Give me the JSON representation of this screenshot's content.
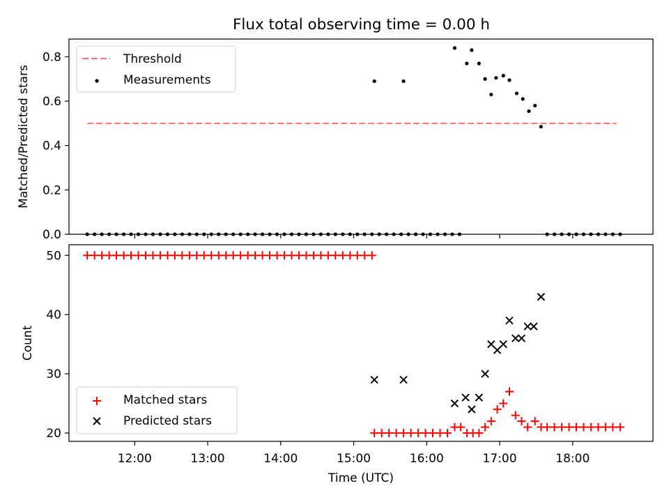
{
  "chart_data": [
    {
      "type": "scatter",
      "title": "Flux total observing time = 0.00 h",
      "ylabel": "Matched/Predicted stars",
      "xlabel": "",
      "xlim": [
        "11:06",
        "19:06"
      ],
      "ylim": [
        0,
        0.88
      ],
      "yticks": [
        "0.0",
        "0.2",
        "0.4",
        "0.6",
        "0.8"
      ],
      "legend_position": "upper left",
      "legend": [
        "Threshold",
        "Measurements"
      ],
      "threshold": {
        "name": "Threshold",
        "value": 0.5,
        "x_start": "11:21",
        "x_end": "18:36",
        "color": "#ff7070",
        "style": "dashed"
      },
      "series": [
        {
          "name": "Measurements",
          "color": "#000000",
          "marker": "dot",
          "points": [
            [
              "11:21",
              0
            ],
            [
              "11:27",
              0
            ],
            [
              "11:33",
              0
            ],
            [
              "11:39",
              0
            ],
            [
              "11:45",
              0
            ],
            [
              "11:51",
              0
            ],
            [
              "11:57",
              0
            ],
            [
              "12:03",
              0
            ],
            [
              "12:09",
              0
            ],
            [
              "12:15",
              0
            ],
            [
              "12:21",
              0
            ],
            [
              "12:27",
              0
            ],
            [
              "12:33",
              0
            ],
            [
              "12:39",
              0
            ],
            [
              "12:45",
              0
            ],
            [
              "12:51",
              0
            ],
            [
              "12:57",
              0
            ],
            [
              "13:03",
              0
            ],
            [
              "13:09",
              0
            ],
            [
              "13:15",
              0
            ],
            [
              "13:21",
              0
            ],
            [
              "13:27",
              0
            ],
            [
              "13:33",
              0
            ],
            [
              "13:39",
              0
            ],
            [
              "13:45",
              0
            ],
            [
              "13:51",
              0
            ],
            [
              "13:57",
              0
            ],
            [
              "14:03",
              0
            ],
            [
              "14:09",
              0
            ],
            [
              "14:15",
              0
            ],
            [
              "14:21",
              0
            ],
            [
              "14:27",
              0
            ],
            [
              "14:33",
              0
            ],
            [
              "14:39",
              0
            ],
            [
              "14:45",
              0
            ],
            [
              "14:51",
              0
            ],
            [
              "14:57",
              0
            ],
            [
              "15:03",
              0
            ],
            [
              "15:09",
              0
            ],
            [
              "15:15",
              0
            ],
            [
              "15:17",
              0.69
            ],
            [
              "15:21",
              0
            ],
            [
              "15:27",
              0
            ],
            [
              "15:33",
              0
            ],
            [
              "15:39",
              0
            ],
            [
              "15:41",
              0.69
            ],
            [
              "15:45",
              0
            ],
            [
              "15:51",
              0
            ],
            [
              "15:57",
              0
            ],
            [
              "16:03",
              0
            ],
            [
              "16:09",
              0
            ],
            [
              "16:15",
              0
            ],
            [
              "16:21",
              0
            ],
            [
              "16:23",
              0.84
            ],
            [
              "16:27",
              0
            ],
            [
              "16:33",
              0.77
            ],
            [
              "16:37",
              0.83
            ],
            [
              "16:43",
              0.77
            ],
            [
              "16:48",
              0.7
            ],
            [
              "16:53",
              0.63
            ],
            [
              "16:57",
              0.705
            ],
            [
              "17:03",
              0.715
            ],
            [
              "17:08",
              0.695
            ],
            [
              "17:14",
              0.635
            ],
            [
              "17:19",
              0.61
            ],
            [
              "17:24",
              0.555
            ],
            [
              "17:29",
              0.58
            ],
            [
              "17:34",
              0.485
            ],
            [
              "17:39",
              0
            ],
            [
              "17:45",
              0
            ],
            [
              "17:51",
              0
            ],
            [
              "17:57",
              0
            ],
            [
              "18:03",
              0
            ],
            [
              "18:09",
              0
            ],
            [
              "18:15",
              0
            ],
            [
              "18:21",
              0
            ],
            [
              "18:27",
              0
            ],
            [
              "18:33",
              0
            ],
            [
              "18:39",
              0
            ]
          ]
        }
      ]
    },
    {
      "type": "scatter",
      "title": "",
      "xlabel": "Time (UTC)",
      "ylabel": "Count",
      "xlim": [
        "11:06",
        "19:06"
      ],
      "ylim": [
        18.6,
        51.8
      ],
      "xticks": [
        "12:00",
        "13:00",
        "14:00",
        "15:00",
        "16:00",
        "17:00",
        "18:00"
      ],
      "yticks": [
        "20",
        "30",
        "40",
        "50"
      ],
      "legend_position": "lower left",
      "legend": [
        "Matched stars",
        "Predicted stars"
      ],
      "series": [
        {
          "name": "Matched stars",
          "color": "#ff0000",
          "marker": "plus",
          "points": [
            [
              "11:21",
              50
            ],
            [
              "11:27",
              50
            ],
            [
              "11:33",
              50
            ],
            [
              "11:39",
              50
            ],
            [
              "11:45",
              50
            ],
            [
              "11:51",
              50
            ],
            [
              "11:57",
              50
            ],
            [
              "12:03",
              50
            ],
            [
              "12:09",
              50
            ],
            [
              "12:15",
              50
            ],
            [
              "12:21",
              50
            ],
            [
              "12:27",
              50
            ],
            [
              "12:33",
              50
            ],
            [
              "12:39",
              50
            ],
            [
              "12:45",
              50
            ],
            [
              "12:51",
              50
            ],
            [
              "12:57",
              50
            ],
            [
              "13:03",
              50
            ],
            [
              "13:09",
              50
            ],
            [
              "13:15",
              50
            ],
            [
              "13:21",
              50
            ],
            [
              "13:27",
              50
            ],
            [
              "13:33",
              50
            ],
            [
              "13:39",
              50
            ],
            [
              "13:45",
              50
            ],
            [
              "13:51",
              50
            ],
            [
              "13:57",
              50
            ],
            [
              "14:03",
              50
            ],
            [
              "14:09",
              50
            ],
            [
              "14:15",
              50
            ],
            [
              "14:21",
              50
            ],
            [
              "14:27",
              50
            ],
            [
              "14:33",
              50
            ],
            [
              "14:39",
              50
            ],
            [
              "14:45",
              50
            ],
            [
              "14:51",
              50
            ],
            [
              "14:57",
              50
            ],
            [
              "15:03",
              50
            ],
            [
              "15:09",
              50
            ],
            [
              "15:15",
              50
            ],
            [
              "15:17",
              20
            ],
            [
              "15:23",
              20
            ],
            [
              "15:29",
              20
            ],
            [
              "15:35",
              20
            ],
            [
              "15:41",
              20
            ],
            [
              "15:47",
              20
            ],
            [
              "15:53",
              20
            ],
            [
              "15:59",
              20
            ],
            [
              "16:05",
              20
            ],
            [
              "16:11",
              20
            ],
            [
              "16:17",
              20
            ],
            [
              "16:23",
              21
            ],
            [
              "16:28",
              21
            ],
            [
              "16:33",
              20
            ],
            [
              "16:38",
              20
            ],
            [
              "16:43",
              20
            ],
            [
              "16:48",
              21
            ],
            [
              "16:53",
              22
            ],
            [
              "16:58",
              24
            ],
            [
              "17:03",
              25
            ],
            [
              "17:08",
              27
            ],
            [
              "17:13",
              23
            ],
            [
              "17:18",
              22
            ],
            [
              "17:23",
              21
            ],
            [
              "17:29",
              22
            ],
            [
              "17:34",
              21
            ],
            [
              "17:39",
              21
            ],
            [
              "17:45",
              21
            ],
            [
              "17:51",
              21
            ],
            [
              "17:57",
              21
            ],
            [
              "18:03",
              21
            ],
            [
              "18:09",
              21
            ],
            [
              "18:15",
              21
            ],
            [
              "18:21",
              21
            ],
            [
              "18:27",
              21
            ],
            [
              "18:33",
              21
            ],
            [
              "18:39",
              21
            ]
          ]
        },
        {
          "name": "Predicted stars",
          "color": "#000000",
          "marker": "x",
          "points": [
            [
              "15:17",
              29
            ],
            [
              "15:41",
              29
            ],
            [
              "16:23",
              25
            ],
            [
              "16:32",
              26
            ],
            [
              "16:37",
              24
            ],
            [
              "16:43",
              26
            ],
            [
              "16:48",
              30
            ],
            [
              "16:53",
              35
            ],
            [
              "16:58",
              34
            ],
            [
              "17:03",
              35
            ],
            [
              "17:08",
              39
            ],
            [
              "17:13",
              36
            ],
            [
              "17:18",
              36
            ],
            [
              "17:23",
              38
            ],
            [
              "17:28",
              38
            ],
            [
              "17:34",
              43
            ]
          ]
        }
      ]
    }
  ]
}
